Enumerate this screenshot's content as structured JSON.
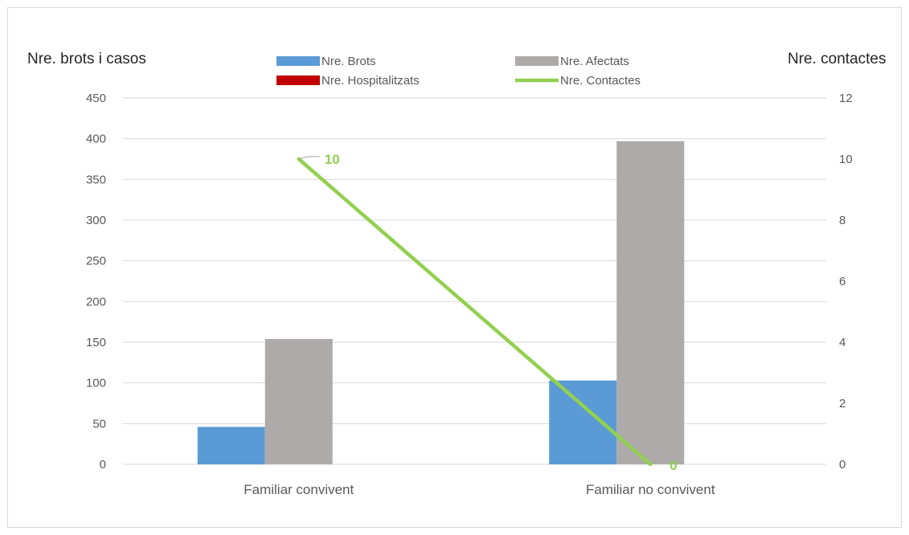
{
  "chart_data": {
    "type": "bar",
    "categories": [
      "Familiar convivent",
      "Familiar no convivent"
    ],
    "series": [
      {
        "name": "Nre. Brots",
        "type": "bar",
        "axis": "left",
        "color": "#5b9bd5",
        "values": [
          46,
          103
        ]
      },
      {
        "name": "Nre. Afectats",
        "type": "bar",
        "axis": "left",
        "color": "#aeaaaa",
        "values": [
          154,
          397
        ]
      },
      {
        "name": "Nre. Hospitalitzats",
        "type": "bar",
        "axis": "left",
        "color": "#c00000",
        "values": [
          0,
          0
        ]
      },
      {
        "name": "Nre.  Contactes",
        "type": "line",
        "axis": "right",
        "color": "#92d050",
        "values": [
          10,
          0
        ]
      }
    ],
    "point_labels": [
      "10",
      "0"
    ],
    "ylabel_left": "Nre. brots i casos",
    "ylabel_right": "Nre. contactes",
    "ylim_left": [
      0,
      450
    ],
    "yticks_left": [
      "0",
      "50",
      "100",
      "150",
      "200",
      "250",
      "300",
      "350",
      "400",
      "450"
    ],
    "ylim_right": [
      0,
      12
    ],
    "yticks_right": [
      "0",
      "2",
      "4",
      "6",
      "8",
      "10",
      "12"
    ],
    "grid": true,
    "legend_position": "top"
  }
}
